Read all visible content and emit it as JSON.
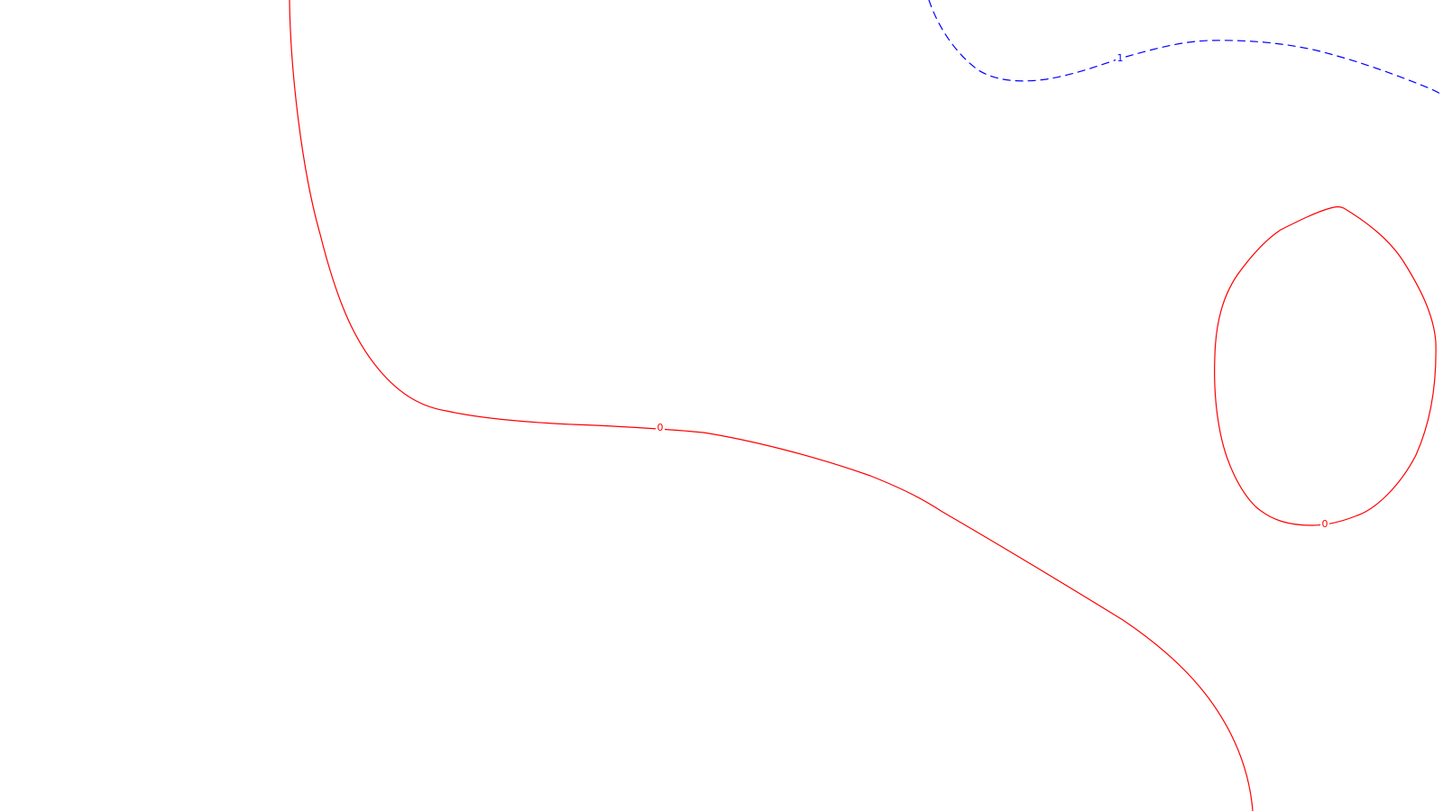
{
  "chart_data": {
    "type": "contour",
    "title": "",
    "xlabel": "",
    "ylabel": "",
    "grid": false,
    "legend": "none",
    "levels": [
      {
        "level": 0,
        "label": "0",
        "color": "#ff0000",
        "linestyle": "solid",
        "segments": [
          "main-curve",
          "closed-loop"
        ],
        "label_count": 2
      },
      {
        "level": 1,
        "label": "1",
        "color": "#0000ff",
        "linestyle": "dashed",
        "segments": [
          "upper-curve"
        ],
        "label_count": 1
      }
    ]
  }
}
